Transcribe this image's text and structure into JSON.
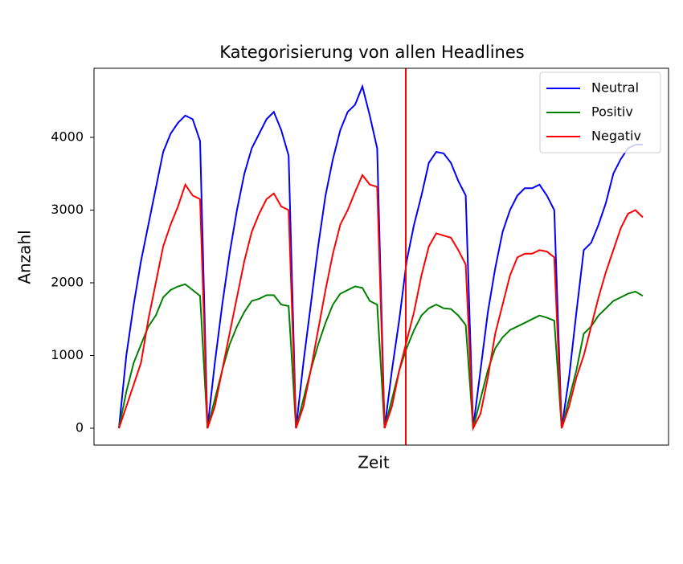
{
  "chart_data": {
    "type": "line",
    "title": "Kategorisierung von allen Headlines",
    "x_label": "Zeit",
    "y_label": "Anzahl",
    "categories": [
      null,
      null,
      null,
      null,
      null,
      null,
      null,
      null,
      null,
      null,
      null,
      null,
      null,
      null,
      null,
      null,
      null,
      null,
      null,
      null,
      null,
      null,
      null,
      null,
      null,
      null,
      null,
      null,
      null,
      null,
      null,
      null,
      null,
      null,
      null,
      null,
      null,
      null,
      null,
      null,
      null,
      null,
      null,
      null,
      null,
      null,
      null,
      null,
      null,
      null,
      null,
      null,
      null,
      null,
      null,
      null,
      null,
      null,
      null,
      null,
      null,
      null,
      null,
      null,
      null,
      null,
      null,
      null,
      null,
      null,
      null,
      null
    ],
    "series": [
      {
        "name": "Neutral",
        "color": "#0000ff",
        "values": [
          0,
          1000,
          1700,
          2300,
          2800,
          3300,
          3800,
          4050,
          4200,
          4300,
          4250,
          3950,
          0,
          900,
          1700,
          2400,
          3000,
          3500,
          3850,
          4050,
          4250,
          4350,
          4100,
          3750,
          0,
          900,
          1700,
          2500,
          3200,
          3700,
          4100,
          4350,
          4450,
          4700,
          4300,
          3850,
          0,
          800,
          1500,
          2300,
          2800,
          3200,
          3650,
          3800,
          3780,
          3650,
          3400,
          3200,
          0,
          800,
          1600,
          2200,
          2700,
          3000,
          3200,
          3300,
          3300,
          3350,
          3200,
          3000,
          0,
          700,
          1600,
          2450,
          2550,
          2800,
          3100,
          3500,
          3700,
          3850,
          3900,
          3900
        ]
      },
      {
        "name": "Positiv",
        "color": "#008000",
        "values": [
          0,
          500,
          900,
          1150,
          1400,
          1550,
          1800,
          1900,
          1950,
          1980,
          1900,
          1820,
          0,
          400,
          800,
          1150,
          1400,
          1600,
          1750,
          1780,
          1830,
          1830,
          1700,
          1680,
          0,
          400,
          800,
          1150,
          1450,
          1700,
          1850,
          1900,
          1950,
          1930,
          1750,
          1700,
          0,
          400,
          800,
          1100,
          1350,
          1550,
          1650,
          1700,
          1650,
          1640,
          1550,
          1420,
          0,
          400,
          800,
          1100,
          1250,
          1350,
          1400,
          1450,
          1500,
          1550,
          1520,
          1480,
          0,
          400,
          800,
          1300,
          1400,
          1550,
          1650,
          1750,
          1800,
          1850,
          1880,
          1820
        ]
      },
      {
        "name": "Negativ",
        "color": "#ff0000",
        "values": [
          0,
          300,
          600,
          900,
          1500,
          2000,
          2500,
          2800,
          3050,
          3350,
          3200,
          3150,
          0,
          300,
          800,
          1300,
          1800,
          2300,
          2700,
          2950,
          3150,
          3230,
          3050,
          3000,
          0,
          300,
          800,
          1350,
          1900,
          2400,
          2800,
          3000,
          3250,
          3480,
          3350,
          3320,
          0,
          300,
          800,
          1200,
          1600,
          2100,
          2500,
          2680,
          2650,
          2620,
          2450,
          2250,
          0,
          200,
          700,
          1300,
          1700,
          2100,
          2350,
          2400,
          2400,
          2450,
          2430,
          2350,
          0,
          300,
          700,
          1000,
          1400,
          1800,
          2150,
          2450,
          2750,
          2950,
          3000,
          2900
        ]
      }
    ],
    "ylim": [
      -232,
      4950
    ],
    "yticks": [
      0,
      1000,
      2000,
      3000,
      4000
    ],
    "grid": false,
    "legend": "upper right"
  }
}
